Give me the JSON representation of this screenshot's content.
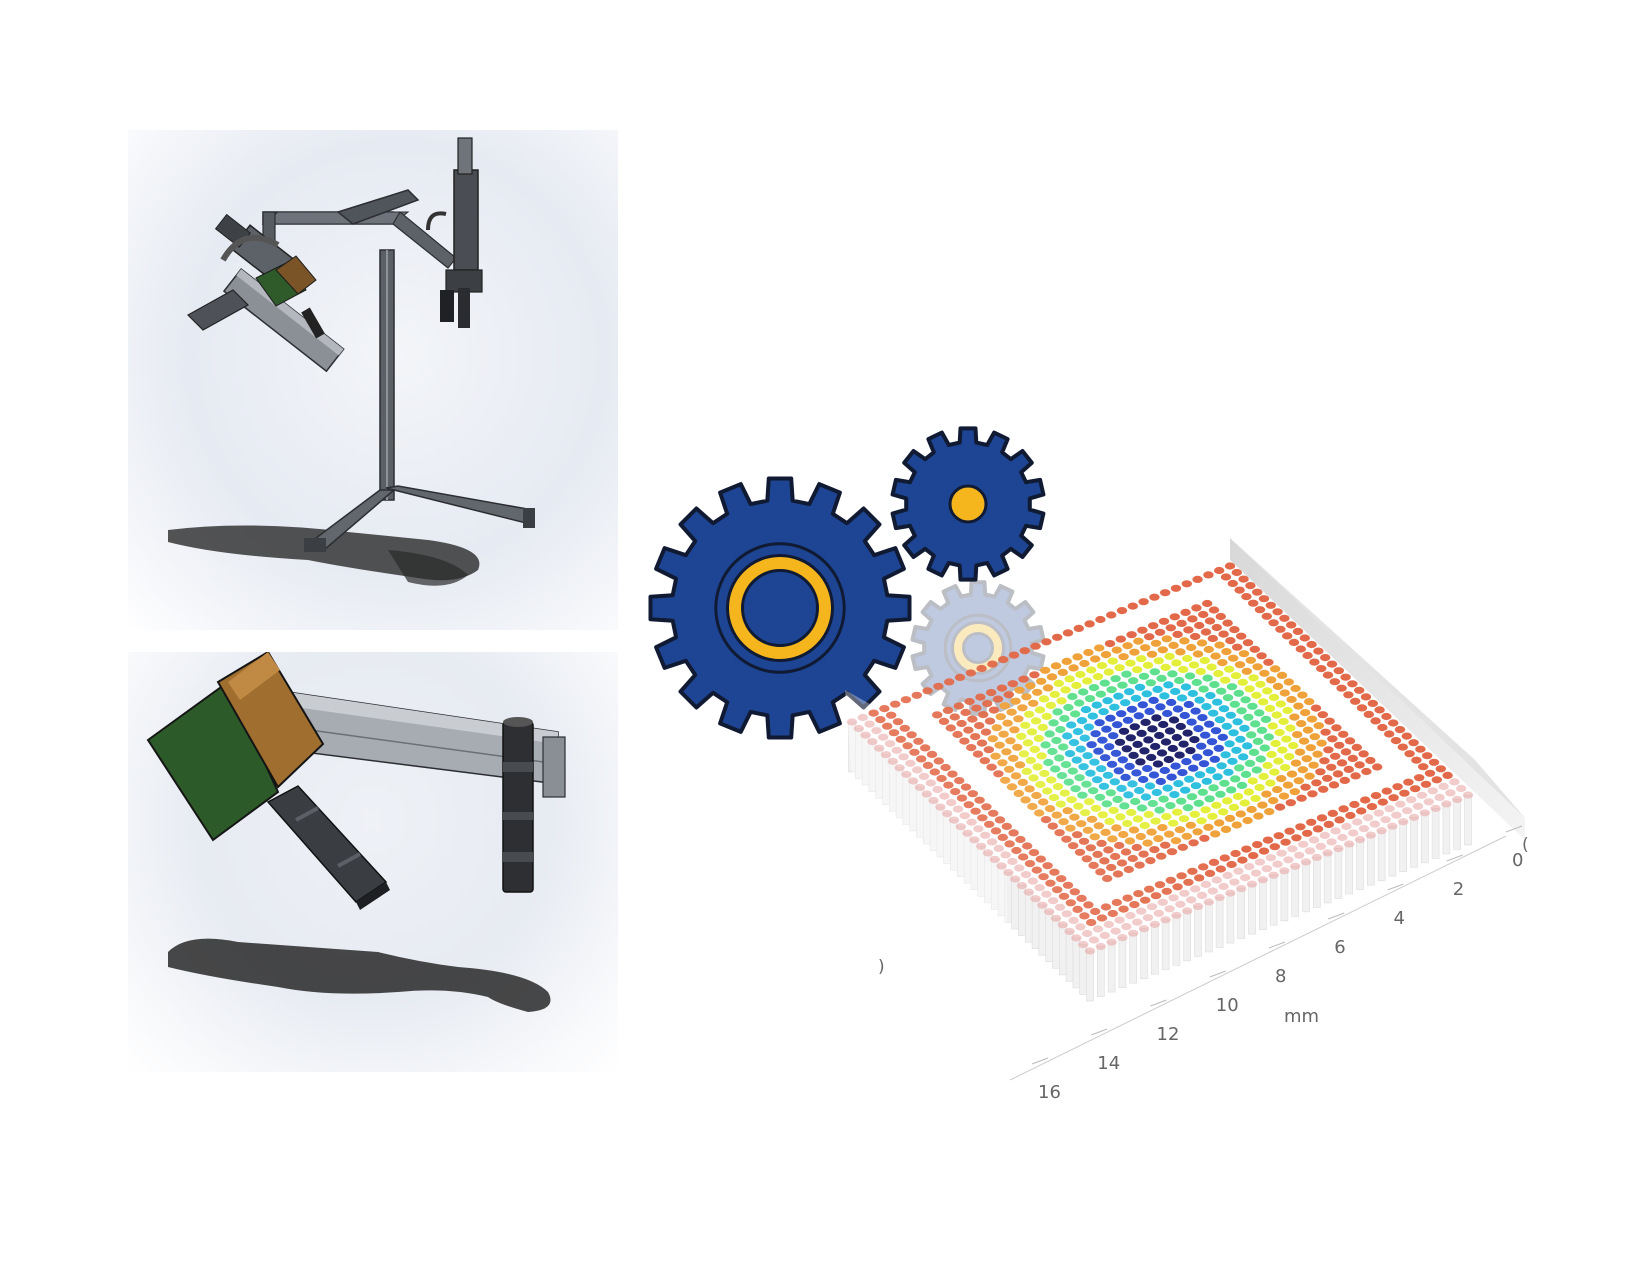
{
  "gear_color": "#1e4594",
  "gear_ring_color": "#f5b51d",
  "scan_plot": {
    "axis_label": "mm",
    "axis_ticks": [
      "0",
      "2",
      "4",
      "6",
      "8",
      "10",
      "12",
      "14",
      "16"
    ],
    "clipped_ticks": [
      "(",
      ")"
    ],
    "colormap": [
      "#22246b",
      "#3355d6",
      "#2fc0e0",
      "#5fe08f",
      "#e4ef3c",
      "#f0a23a",
      "#e26a4a",
      "#e8a0a0"
    ]
  }
}
